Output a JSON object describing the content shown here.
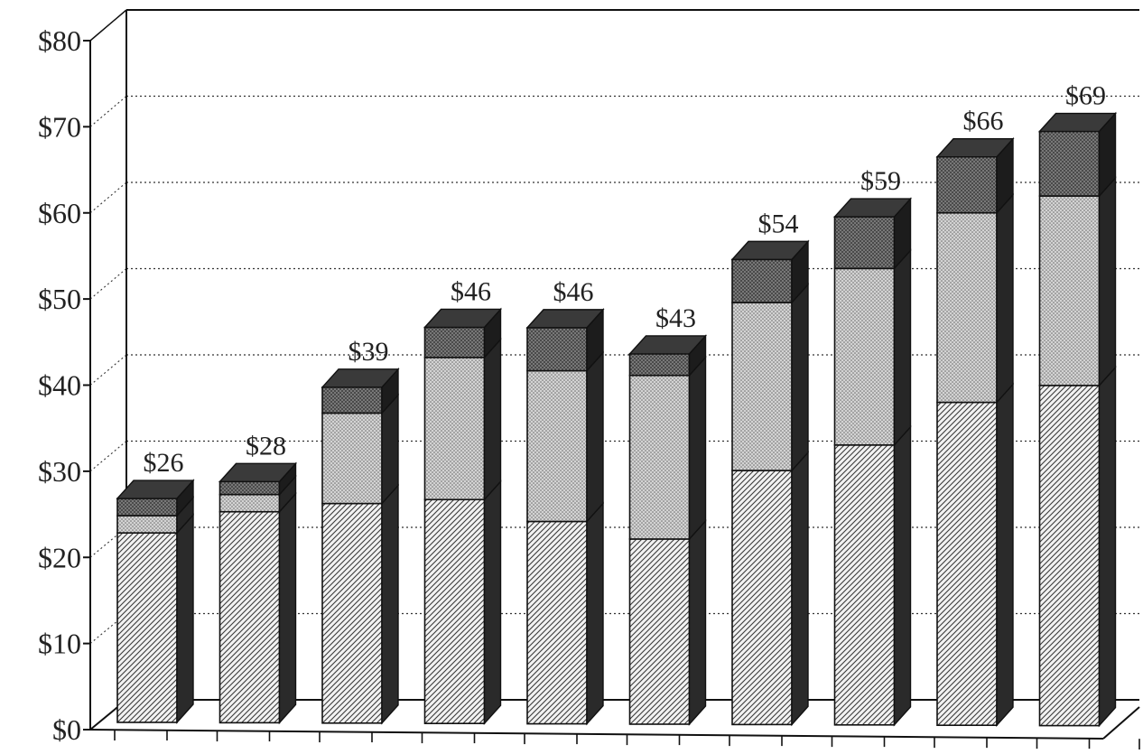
{
  "chart_data": {
    "type": "bar",
    "stacked": true,
    "three_d": true,
    "y_tick_labels": [
      "$0",
      "$10",
      "$20",
      "$30",
      "$40",
      "$50",
      "$60",
      "$70",
      "$80"
    ],
    "ylim": [
      0,
      80
    ],
    "grid": "dotted horizontal",
    "categories": [
      "",
      "",
      "",
      "",
      "",
      "",
      "",
      "",
      "",
      ""
    ],
    "series": [
      {
        "values": [
          22,
          24.5,
          25.5,
          26,
          23.5,
          21.5,
          29.5,
          32.5,
          37.5,
          39.5
        ]
      },
      {
        "values": [
          2,
          2,
          10.5,
          16.5,
          17.5,
          19,
          19.5,
          20.5,
          22,
          22
        ]
      },
      {
        "values": [
          2,
          1.5,
          3,
          3.5,
          5,
          2.5,
          5,
          6,
          6.5,
          7.5
        ]
      }
    ],
    "totals": [
      26,
      28,
      39,
      46,
      46,
      43,
      54,
      59,
      66,
      69
    ],
    "total_labels": [
      "$26",
      "$28",
      "$39",
      "$46",
      "$46",
      "$43",
      "$54",
      "$59",
      "$66",
      "$69"
    ],
    "colors": {
      "series_fills": [
        "#e6e6e6",
        "#c4c4c4",
        "#5a5a5a"
      ],
      "series_sides": [
        "#2a2a2a",
        "#262626",
        "#1c1c1c"
      ],
      "series_tops": [
        "#bdbdbd",
        "#9c9c9c",
        "#3a3a3a"
      ],
      "axis": "#111111",
      "grid": "#333333"
    }
  }
}
